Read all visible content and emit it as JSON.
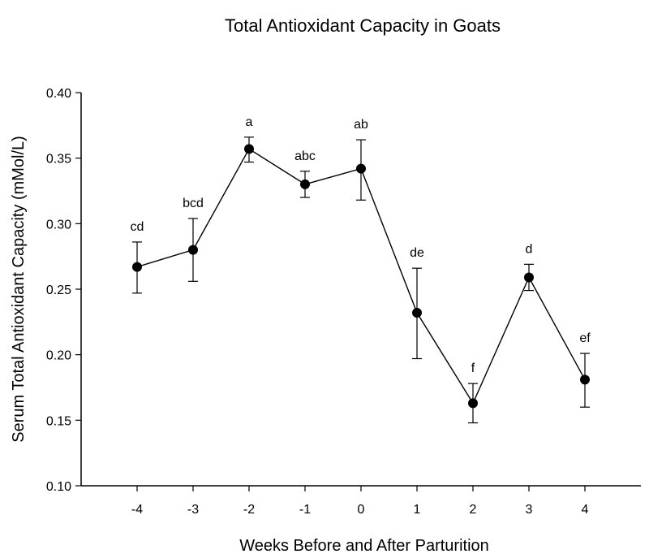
{
  "chart_data": {
    "type": "line",
    "title": "Total Antioxidant Capacity in Goats",
    "xlabel": "Weeks Before and After Parturition",
    "ylabel": "Serum Total Antioxidant Capacity (mMol/L)",
    "xlim": [
      -5,
      5
    ],
    "ylim": [
      0.1,
      0.4
    ],
    "x_ticks": [
      "-4",
      "-3",
      "-2",
      "-1",
      "0",
      "1",
      "2",
      "3",
      "4"
    ],
    "y_ticks": [
      "0.10",
      "0.15",
      "0.20",
      "0.25",
      "0.30",
      "0.35",
      "0.40"
    ],
    "grid": false,
    "series": [
      {
        "x": [
          -4,
          -3,
          -2,
          -1,
          0,
          1,
          2,
          3,
          4
        ],
        "values": [
          0.267,
          0.28,
          0.357,
          0.33,
          0.342,
          0.232,
          0.163,
          0.259,
          0.181
        ],
        "error_low": [
          0.247,
          0.256,
          0.347,
          0.32,
          0.318,
          0.197,
          0.148,
          0.249,
          0.16
        ],
        "error_high": [
          0.286,
          0.304,
          0.366,
          0.34,
          0.364,
          0.266,
          0.178,
          0.269,
          0.201
        ],
        "annotations": [
          "cd",
          "bcd",
          "a",
          "abc",
          "ab",
          "de",
          "f",
          "d",
          "ef"
        ]
      }
    ],
    "colors": {
      "line": "#000000",
      "marker": "#000000",
      "axis": "#000000"
    }
  }
}
